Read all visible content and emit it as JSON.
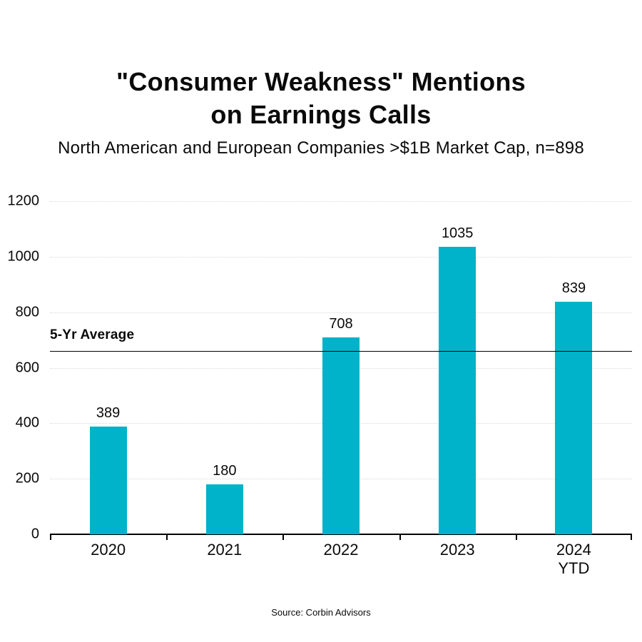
{
  "title": {
    "line1": "\"Consumer Weakness\" Mentions",
    "line2": "on Earnings Calls"
  },
  "subtitle": "North American and European Companies >$1B Market Cap, n=898",
  "source": "Source: Corbin Advisors",
  "colors": {
    "bar": "#00b2ca",
    "average_line": "#000000",
    "gridline": "#d9d9d9",
    "axis": "#000000",
    "text": "#0a0a0a",
    "background": "#ffffff"
  },
  "chart_data": {
    "type": "bar",
    "title": "\"Consumer Weakness\" Mentions on Earnings Calls",
    "subtitle": "North American and European Companies >$1B Market Cap, n=898",
    "categories": [
      "2020",
      "2021",
      "2022",
      "2023",
      "2024 YTD"
    ],
    "category_labels": [
      {
        "line1": "2020",
        "line2": ""
      },
      {
        "line1": "2021",
        "line2": ""
      },
      {
        "line1": "2022",
        "line2": ""
      },
      {
        "line1": "2023",
        "line2": ""
      },
      {
        "line1": "2024",
        "line2": "YTD"
      }
    ],
    "values": [
      389,
      180,
      708,
      1035,
      839
    ],
    "xlabel": "",
    "ylabel": "",
    "ylim": [
      0,
      1200
    ],
    "yticks": [
      0,
      200,
      400,
      600,
      800,
      1000,
      1200
    ],
    "grid": "horizontal-dotted",
    "legend": "none",
    "average_line": {
      "label": "5-Yr Average",
      "value": 660
    },
    "source": "Source: Corbin Advisors"
  }
}
